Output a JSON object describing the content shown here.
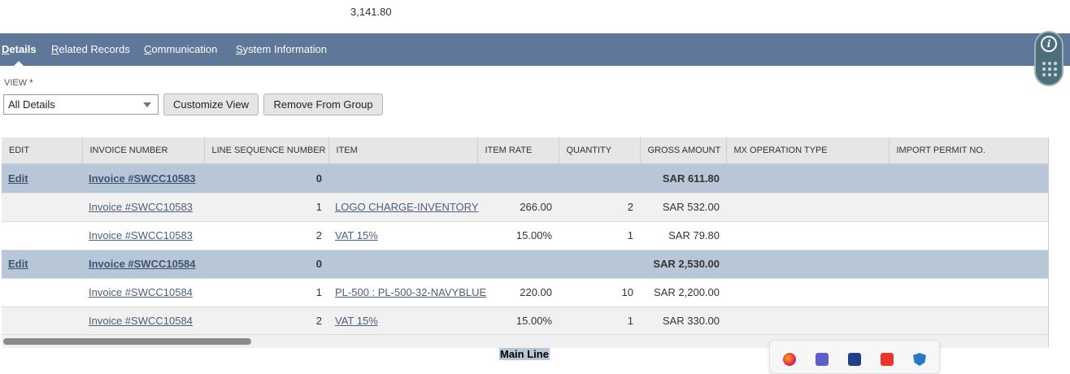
{
  "header": {
    "amount": "3,141.80"
  },
  "tabs": [
    {
      "first": "D",
      "rest": "etails",
      "active": true
    },
    {
      "first": "R",
      "rest": "elated Records"
    },
    {
      "first": "C",
      "rest": "ommunication"
    },
    {
      "first": "S",
      "rest": "ystem Information"
    }
  ],
  "view": {
    "label": "VIEW",
    "required_mark": "*",
    "selected": "All Details",
    "customize_button": "Customize View",
    "remove_button": "Remove From Group"
  },
  "table": {
    "columns": [
      "EDIT",
      "INVOICE NUMBER",
      "LINE SEQUENCE NUMBER",
      "ITEM",
      "ITEM RATE",
      "QUANTITY",
      "GROSS AMOUNT",
      "MX OPERATION TYPE",
      "IMPORT PERMIT NO."
    ],
    "rows": [
      {
        "edit": "Edit",
        "invoice": "Invoice #SWCC10583",
        "seq": "0",
        "item": "",
        "rate": "",
        "qty": "",
        "gross": "SAR 611.80",
        "mx": "",
        "permit": ""
      },
      {
        "edit": "",
        "invoice": "Invoice #SWCC10583",
        "seq": "1",
        "item": "LOGO CHARGE-INVENTORY",
        "rate": "266.00",
        "qty": "2",
        "gross": "SAR 532.00",
        "mx": "",
        "permit": ""
      },
      {
        "edit": "",
        "invoice": "Invoice #SWCC10583",
        "seq": "2",
        "item": "VAT 15%",
        "rate": "15.00%",
        "qty": "1",
        "gross": "SAR 79.80",
        "mx": "",
        "permit": ""
      },
      {
        "edit": "Edit",
        "invoice": "Invoice #SWCC10584",
        "seq": "0",
        "item": "",
        "rate": "",
        "qty": "",
        "gross": "SAR 2,530.00",
        "mx": "",
        "permit": ""
      },
      {
        "edit": "",
        "invoice": "Invoice #SWCC10584",
        "seq": "1",
        "item": "PL-500 : PL-500-32-NAVYBLUE",
        "rate": "220.00",
        "qty": "10",
        "gross": "SAR 2,200.00",
        "mx": "",
        "permit": ""
      },
      {
        "edit": "",
        "invoice": "Invoice #SWCC10584",
        "seq": "2",
        "item": "VAT 15%",
        "rate": "15.00%",
        "qty": "1",
        "gross": "SAR 330.00",
        "mx": "",
        "permit": ""
      }
    ]
  },
  "footer": {
    "selected_text": "Main Line"
  },
  "colors": {
    "tab_bar": "#5f7798",
    "group_row": "#b8c7d8",
    "link": "#4d5f79"
  },
  "tray_icons": [
    "firefox-icon",
    "teams-icon",
    "vpn-icon",
    "anydesk-icon",
    "security-shield-icon"
  ]
}
